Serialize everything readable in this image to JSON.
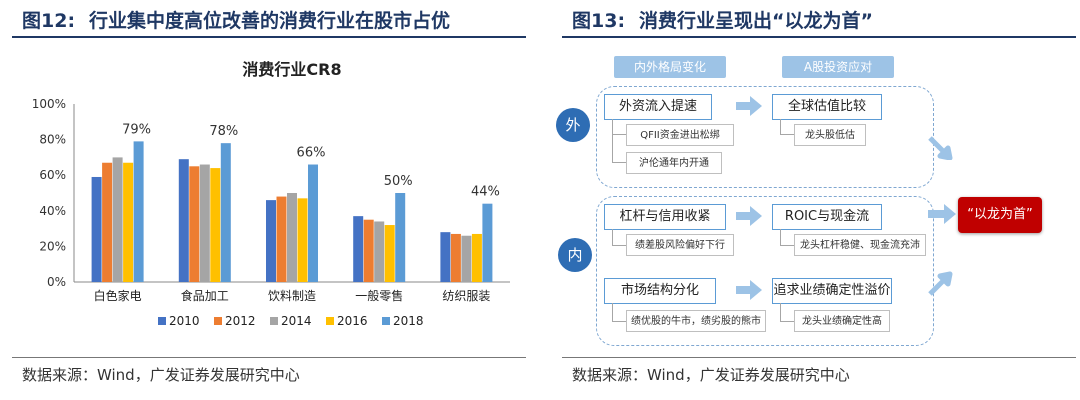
{
  "left": {
    "figure_no": "图12:",
    "figure_title": "行业集中度高位改善的消费行业在股市占优",
    "source": "数据来源：Wind，广发证券发展研究中心"
  },
  "right": {
    "figure_no": "图13:",
    "figure_title": "消费行业呈现出“以龙为首”",
    "source": "数据来源：Wind，广发证券发展研究中心",
    "headers": [
      "内外格局变化",
      "A股投资应对"
    ],
    "outer_label": "外",
    "inner_label": "内",
    "rows": [
      {
        "cause": "外资流入提速",
        "cause_details": [
          "QFII资金进出松绑",
          "沪伦通年内开通"
        ],
        "effect": "全球估值比较",
        "effect_detail": "龙头股低估"
      },
      {
        "cause": "杠杆与信用收紧",
        "cause_details": [
          "绩差股风险偏好下行"
        ],
        "effect": "ROIC与现金流",
        "effect_detail": "龙头杠杆稳健、现金流充沛"
      },
      {
        "cause": "市场结构分化",
        "cause_details": [
          "绩优股的牛市，绩劣股的熊市"
        ],
        "effect": "追求业绩确定性溢价",
        "effect_detail": "龙头业绩确定性高"
      }
    ],
    "result": "“以龙为首”"
  },
  "chart_data": {
    "type": "bar",
    "title": "消费行业CR8",
    "categories": [
      "白色家电",
      "食品加工",
      "饮料制造",
      "一般零售",
      "纺织服装"
    ],
    "series": [
      {
        "name": "2010",
        "color": "#4472c4",
        "values": [
          59,
          69,
          46,
          37,
          28
        ]
      },
      {
        "name": "2012",
        "color": "#ed7d31",
        "values": [
          67,
          65,
          48,
          35,
          27
        ]
      },
      {
        "name": "2014",
        "color": "#a5a5a5",
        "values": [
          70,
          66,
          50,
          34,
          26
        ]
      },
      {
        "name": "2016",
        "color": "#ffc000",
        "values": [
          67,
          64,
          47,
          32,
          27
        ]
      },
      {
        "name": "2018",
        "color": "#5b9bd5",
        "values": [
          79,
          78,
          66,
          50,
          44
        ]
      }
    ],
    "data_labels": [
      "79%",
      "78%",
      "66%",
      "50%",
      "44%"
    ],
    "ylim": [
      0,
      100
    ],
    "yticks": [
      "0%",
      "20%",
      "40%",
      "60%",
      "80%",
      "100%"
    ],
    "grid": false,
    "legend_position": "bottom"
  }
}
